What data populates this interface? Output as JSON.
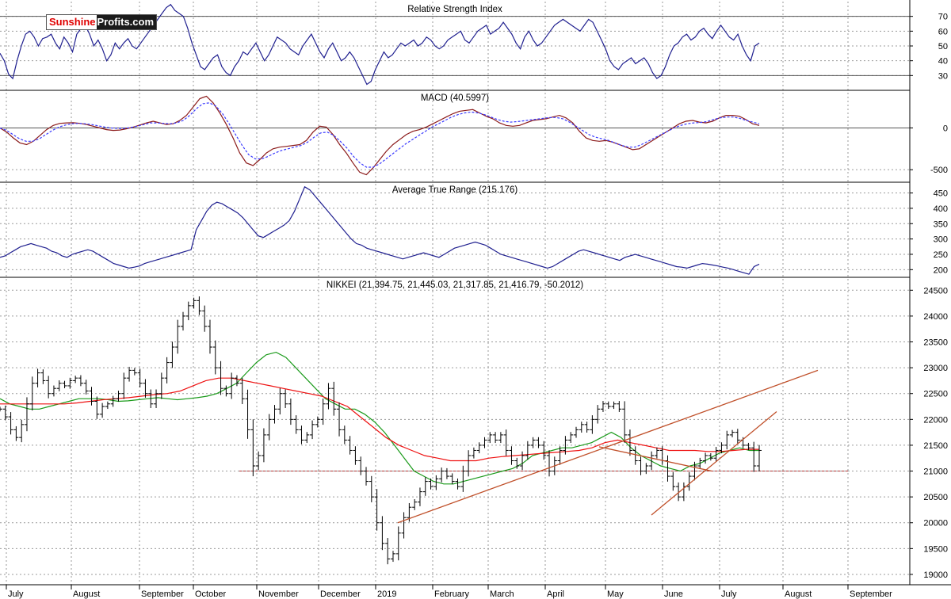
{
  "logo": {
    "part1": "Sunshine",
    "part2": "Profits.com"
  },
  "colors": {
    "rsi": "#1f1f8f",
    "macd": "#8b1a1a",
    "signal": "#3b3bff",
    "ma_green": "#1a9a1a",
    "ma_red": "#ee1111",
    "trend": "#c0502a",
    "support": "#b03030",
    "grid": "#9a9a9a",
    "bars": "#000000"
  },
  "months": [
    "July",
    "August",
    "September",
    "October",
    "November",
    "December",
    "2019",
    "February",
    "March",
    "April",
    "May",
    "June",
    "July",
    "August",
    "September"
  ],
  "chart_data": [
    {
      "type": "line",
      "title": "Relative Strength Index",
      "yticks": [
        30,
        40,
        50,
        60,
        70
      ],
      "ylim": [
        20,
        80
      ],
      "reference_lines": [
        30,
        70
      ],
      "series": [
        {
          "values": [
            45,
            40,
            31,
            28,
            40,
            50,
            58,
            60,
            56,
            50,
            55,
            56,
            58,
            52,
            48,
            56,
            52,
            46,
            58,
            62,
            64,
            58,
            50,
            54,
            48,
            40,
            44,
            52,
            48,
            52,
            55,
            50,
            48,
            52,
            56,
            60,
            64,
            68,
            72,
            76,
            78,
            74,
            72,
            70,
            62,
            52,
            44,
            36,
            34,
            38,
            42,
            44,
            36,
            32,
            30,
            36,
            40,
            46,
            44,
            48,
            52,
            46,
            40,
            44,
            50,
            56,
            54,
            52,
            48,
            46,
            44,
            50,
            54,
            58,
            52,
            46,
            42,
            48,
            52,
            46,
            40,
            42,
            46,
            42,
            36,
            30,
            24,
            26,
            34,
            40,
            46,
            42,
            44,
            48,
            52,
            50,
            52,
            54,
            50,
            52,
            56,
            54,
            50,
            48,
            50,
            54,
            56,
            58,
            60,
            54,
            52,
            56,
            60,
            62,
            64,
            58,
            60,
            62,
            66,
            62,
            58,
            52,
            48,
            56,
            60,
            54,
            50,
            52,
            56,
            60,
            64,
            66,
            68,
            66,
            64,
            62,
            60,
            64,
            68,
            66,
            60,
            54,
            48,
            40,
            36,
            34,
            38,
            40,
            42,
            38,
            40,
            42,
            38,
            32,
            28,
            30,
            36,
            44,
            50,
            52,
            56,
            58,
            54,
            56,
            60,
            62,
            58,
            55,
            60,
            64,
            60,
            56,
            54,
            58,
            50,
            44,
            40,
            50,
            52
          ]
        }
      ]
    },
    {
      "type": "line",
      "title": "MACD (40.5997)",
      "yticks": [
        -500,
        0
      ],
      "ylim": [
        -650,
        450
      ],
      "reference_lines": [
        0
      ],
      "series": [
        {
          "values": [
            0,
            -50,
            -120,
            -180,
            -200,
            -160,
            -90,
            -20,
            30,
            55,
            60,
            62,
            55,
            40,
            20,
            0,
            -20,
            -30,
            -25,
            -10,
            10,
            35,
            60,
            80,
            60,
            40,
            50,
            90,
            150,
            250,
            350,
            380,
            300,
            180,
            40,
            -120,
            -300,
            -420,
            -450,
            -380,
            -300,
            -250,
            -230,
            -220,
            -210,
            -200,
            -150,
            -50,
            20,
            10,
            -80,
            -200,
            -300,
            -420,
            -530,
            -560,
            -480,
            -380,
            -280,
            -200,
            -140,
            -80,
            -40,
            -20,
            10,
            50,
            90,
            130,
            170,
            200,
            210,
            220,
            180,
            140,
            110,
            60,
            30,
            20,
            30,
            60,
            90,
            100,
            110,
            130,
            150,
            120,
            60,
            -40,
            -120,
            -150,
            -160,
            -150,
            -170,
            -200,
            -230,
            -260,
            -250,
            -200,
            -150,
            -100,
            -50,
            0,
            50,
            80,
            90,
            70,
            60,
            80,
            120,
            150,
            150,
            140,
            100,
            50,
            30
          ]
        },
        {
          "values": [
            0,
            -30,
            -80,
            -130,
            -160,
            -160,
            -130,
            -80,
            -30,
            10,
            35,
            50,
            55,
            50,
            40,
            25,
            10,
            0,
            -5,
            -5,
            5,
            20,
            40,
            60,
            60,
            55,
            50,
            60,
            90,
            150,
            230,
            290,
            300,
            260,
            170,
            50,
            -80,
            -210,
            -320,
            -370,
            -370,
            -340,
            -300,
            -270,
            -250,
            -230,
            -210,
            -170,
            -110,
            -60,
            -50,
            -90,
            -160,
            -240,
            -340,
            -420,
            -470,
            -470,
            -430,
            -370,
            -310,
            -250,
            -190,
            -140,
            -90,
            -40,
            10,
            50,
            90,
            130,
            160,
            180,
            190,
            180,
            160,
            130,
            100,
            80,
            70,
            75,
            85,
            95,
            105,
            115,
            125,
            125,
            110,
            70,
            20,
            -30,
            -80,
            -110,
            -130,
            -150,
            -180,
            -210,
            -230,
            -230,
            -200,
            -160,
            -120,
            -80,
            -40,
            0,
            30,
            50,
            60,
            65,
            75,
            100,
            120,
            130,
            130,
            115,
            90,
            70,
            50
          ]
        }
      ]
    },
    {
      "type": "line",
      "title": "Average True Range (215.176)",
      "yticks": [
        200,
        250,
        300,
        350,
        400,
        450
      ],
      "ylim": [
        175,
        485
      ],
      "series": [
        {
          "values": [
            240,
            245,
            255,
            265,
            275,
            280,
            285,
            280,
            275,
            270,
            260,
            255,
            245,
            240,
            250,
            255,
            260,
            265,
            260,
            250,
            240,
            230,
            220,
            215,
            210,
            205,
            208,
            212,
            220,
            225,
            230,
            235,
            240,
            245,
            250,
            255,
            260,
            265,
            330,
            360,
            390,
            410,
            420,
            415,
            405,
            395,
            385,
            370,
            350,
            330,
            310,
            305,
            315,
            325,
            335,
            345,
            360,
            390,
            430,
            470,
            460,
            440,
            420,
            400,
            380,
            360,
            340,
            320,
            300,
            285,
            280,
            270,
            265,
            260,
            255,
            250,
            245,
            240,
            235,
            240,
            245,
            250,
            255,
            250,
            245,
            240,
            250,
            260,
            270,
            275,
            280,
            285,
            290,
            285,
            280,
            270,
            260,
            250,
            245,
            240,
            235,
            230,
            225,
            220,
            215,
            210,
            205,
            210,
            220,
            230,
            240,
            250,
            260,
            265,
            260,
            255,
            250,
            245,
            240,
            235,
            230,
            240,
            245,
            250,
            245,
            240,
            235,
            230,
            225,
            220,
            215,
            210,
            208,
            205,
            210,
            215,
            220,
            218,
            215,
            212,
            208,
            205,
            200,
            195,
            190,
            185,
            210,
            218
          ]
        }
      ]
    },
    {
      "type": "bar",
      "title": "NIKKEI (21,394.75, 21,445.03, 21,317.85, 21,416.79, -50.2012)",
      "yticks": [
        19000,
        19500,
        20000,
        20500,
        21000,
        21500,
        22000,
        22500,
        23000,
        23500,
        24000,
        24500
      ],
      "ylim": [
        18800,
        24750
      ],
      "support_level": 21000,
      "close": [
        22200,
        22050,
        21800,
        21650,
        21900,
        22300,
        22700,
        22900,
        22750,
        22500,
        22600,
        22700,
        22650,
        22750,
        22800,
        22700,
        22550,
        22350,
        22100,
        22250,
        22300,
        22400,
        22500,
        22800,
        22950,
        22900,
        22700,
        22500,
        22300,
        22500,
        22800,
        23100,
        23400,
        23800,
        24000,
        24200,
        24300,
        24100,
        23800,
        23400,
        23000,
        22600,
        22500,
        22800,
        22700,
        22400,
        21800,
        21100,
        21300,
        21700,
        22000,
        22200,
        22500,
        22300,
        22000,
        21800,
        21600,
        21700,
        21900,
        22000,
        22300,
        22600,
        22200,
        21800,
        21600,
        21400,
        21200,
        21000,
        20800,
        20500,
        20000,
        19600,
        19300,
        19400,
        19800,
        20100,
        20300,
        20400,
        20600,
        20800,
        20700,
        20850,
        21000,
        20900,
        20800,
        20700,
        21000,
        21300,
        21400,
        21500,
        21600,
        21700,
        21600,
        21700,
        21400,
        21200,
        21100,
        21300,
        21500,
        21600,
        21500,
        21300,
        21000,
        21200,
        21400,
        21600,
        21700,
        21800,
        21900,
        21800,
        22000,
        22200,
        22300,
        22250,
        22300,
        22200,
        21700,
        21400,
        21200,
        21000,
        21100,
        21300,
        21400,
        21200,
        20900,
        20700,
        20500,
        20700,
        20900,
        21100,
        21200,
        21300,
        21250,
        21400,
        21500,
        21700,
        21750,
        21600,
        21500,
        21450,
        21100,
        21400
      ],
      "series": [
        {
          "name": "green",
          "values": [
            22400,
            22300,
            22250,
            22200,
            22200,
            22250,
            22300,
            22350,
            22400,
            22400,
            22400,
            22380,
            22350,
            22360,
            22380,
            22400,
            22420,
            22400,
            22380,
            22400,
            22420,
            22450,
            22500,
            22600,
            22700,
            22900,
            23100,
            23250,
            23300,
            23200,
            23000,
            22800,
            22600,
            22400,
            22300,
            22200,
            22200,
            22100,
            21950,
            21750,
            21500,
            21250,
            21000,
            20900,
            20800,
            20750,
            20750,
            20800,
            20850,
            20900,
            20950,
            21000,
            21050,
            21150,
            21300,
            21350,
            21400,
            21450,
            21450,
            21500,
            21550,
            21650,
            21750,
            21650,
            21450,
            21300,
            21200,
            21100,
            21050,
            21000,
            21100,
            21150,
            21250,
            21350,
            21400,
            21450,
            21400,
            21400
          ]
        },
        {
          "name": "red",
          "values": [
            22300,
            22300,
            22300,
            22300,
            22300,
            22300,
            22320,
            22350,
            22380,
            22400,
            22420,
            22450,
            22480,
            22500,
            22550,
            22650,
            22750,
            22800,
            22800,
            22750,
            22700,
            22650,
            22600,
            22550,
            22500,
            22450,
            22350,
            22250,
            22050,
            21850,
            21650,
            21500,
            21400,
            21300,
            21250,
            21200,
            21200,
            21200,
            21250,
            21280,
            21300,
            21320,
            21340,
            21360,
            21380,
            21400,
            21450,
            21550,
            21600,
            21550,
            21500,
            21450,
            21400,
            21400,
            21400,
            21380,
            21380,
            21400,
            21420,
            21420
          ]
        }
      ]
    }
  ]
}
